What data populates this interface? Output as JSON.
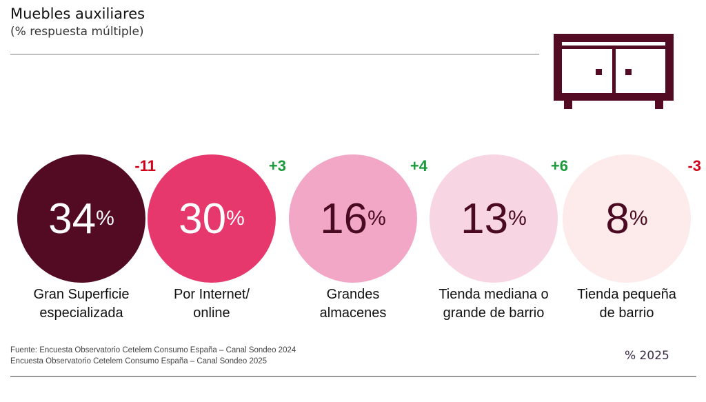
{
  "chart_data": {
    "type": "bubble",
    "title": "Muebles auxiliares",
    "subtitle": "(% respuesta múltiple)",
    "items": [
      {
        "label_lines": [
          "Gran Superficie",
          "especializada"
        ],
        "value": 34,
        "delta": "-11",
        "color": "#530b24",
        "text_color": "#ffffff",
        "delta_color": "#d0021b"
      },
      {
        "label_lines": [
          "Por Internet/",
          "online"
        ],
        "value": 30,
        "delta": "+3",
        "color": "#e6386c",
        "text_color": "#ffffff",
        "delta_color": "#1a9a3a"
      },
      {
        "label_lines": [
          "Grandes",
          "almacenes"
        ],
        "value": 16,
        "delta": "+4",
        "color": "#f2a7c6",
        "text_color": "#4a0a22",
        "delta_color": "#1a9a3a"
      },
      {
        "label_lines": [
          "Tienda mediana o",
          "grande de barrio"
        ],
        "value": 13,
        "delta": "+6",
        "color": "#f8d5e3",
        "text_color": "#4a0a22",
        "delta_color": "#1a9a3a"
      },
      {
        "label_lines": [
          "Tienda pequeña",
          "de barrio"
        ],
        "value": 8,
        "delta": "-3",
        "color": "#fdeaea",
        "text_color": "#4a0a22",
        "delta_color": "#d0021b"
      }
    ],
    "pct_symbol": "%",
    "legend": "% 2025"
  },
  "source": [
    "Fuente: Encuesta Observatorio Cetelem Consumo España – Canal Sondeo 2024",
    "Encuesta Observatorio Cetelem Consumo España – Canal Sondeo 2025"
  ],
  "icon": "sideboard-icon"
}
